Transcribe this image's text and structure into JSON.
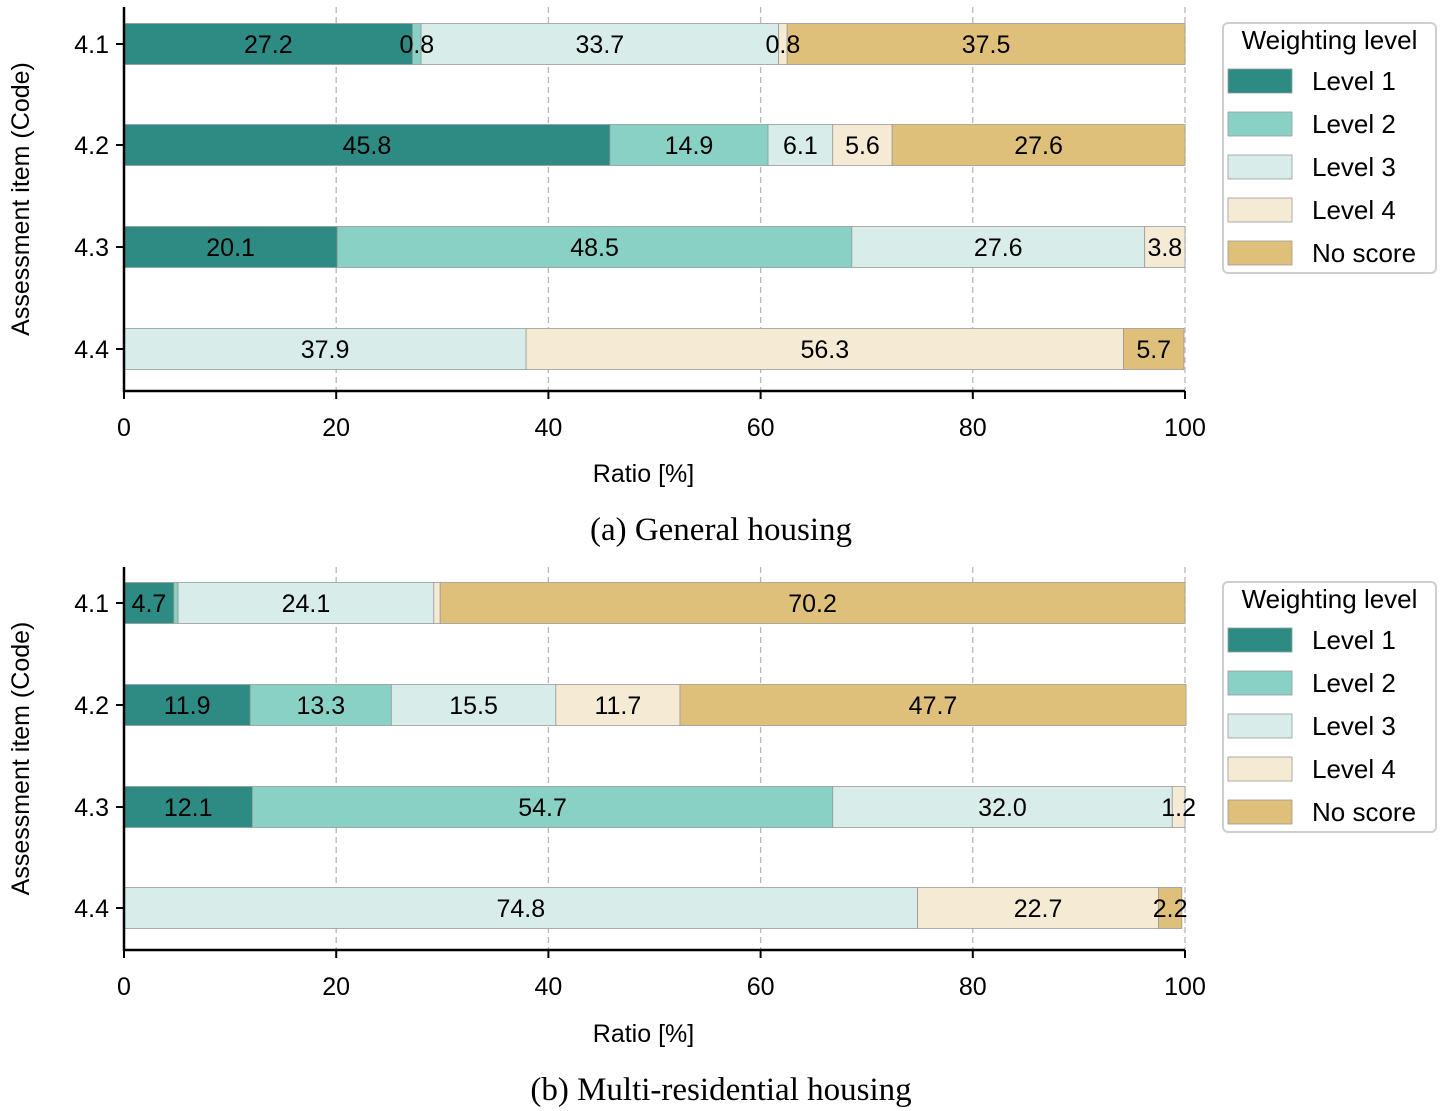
{
  "chart_data": [
    {
      "type": "bar",
      "orientation": "horizontal",
      "stacked": true,
      "caption": "(a) General housing",
      "xlabel": "Ratio [%]",
      "ylabel": "Assessment item (Code)",
      "xlim": [
        0,
        100
      ],
      "xticks": [
        "0",
        "20",
        "40",
        "60",
        "80",
        "100"
      ],
      "grid": "vertical dashed",
      "categories": [
        "4.1",
        "4.2",
        "4.3",
        "4.4"
      ],
      "series": [
        {
          "name": "Level 1",
          "color": "#2e8b84",
          "values": [
            27.2,
            45.8,
            20.1,
            0.0
          ],
          "labels": [
            "27.2",
            "45.8",
            "20.1",
            ""
          ]
        },
        {
          "name": "Level 2",
          "color": "#88d1c4",
          "values": [
            0.8,
            14.9,
            48.5,
            0.0
          ],
          "labels": [
            "0.8",
            "14.9",
            "48.5",
            ""
          ]
        },
        {
          "name": "Level 3",
          "color": "#d8edea",
          "values": [
            33.7,
            6.1,
            27.6,
            37.9
          ],
          "labels": [
            "33.7",
            "6.1",
            "27.6",
            "37.9"
          ]
        },
        {
          "name": "Level 4",
          "color": "#f5ead4",
          "values": [
            0.8,
            5.6,
            3.8,
            56.3
          ],
          "labels": [
            "0.8",
            "5.6",
            "3.8",
            "56.3"
          ]
        },
        {
          "name": "No score",
          "color": "#dfc07a",
          "values": [
            37.5,
            27.6,
            0.0,
            5.7
          ],
          "labels": [
            "37.5",
            "27.6",
            "",
            "5.7"
          ]
        }
      ],
      "legend": {
        "title": "Weighting level",
        "position": "right"
      }
    },
    {
      "type": "bar",
      "orientation": "horizontal",
      "stacked": true,
      "caption": "(b) Multi-residential housing",
      "xlabel": "Ratio [%]",
      "ylabel": "Assessment item (Code)",
      "xlim": [
        0,
        100
      ],
      "xticks": [
        "0",
        "20",
        "40",
        "60",
        "80",
        "100"
      ],
      "grid": "vertical dashed",
      "categories": [
        "4.1",
        "4.2",
        "4.3",
        "4.4"
      ],
      "series": [
        {
          "name": "Level 1",
          "color": "#2e8b84",
          "values": [
            4.7,
            11.9,
            12.1,
            0.0
          ],
          "labels": [
            "4.7",
            "11.9",
            "12.1",
            ""
          ]
        },
        {
          "name": "Level 2",
          "color": "#88d1c4",
          "values": [
            0.4,
            13.3,
            54.7,
            0.0
          ],
          "labels": [
            "",
            "13.3",
            "54.7",
            ""
          ]
        },
        {
          "name": "Level 3",
          "color": "#d8edea",
          "values": [
            24.1,
            15.5,
            32.0,
            74.8
          ],
          "labels": [
            "24.1",
            "15.5",
            "32.0",
            "74.8"
          ]
        },
        {
          "name": "Level 4",
          "color": "#f5ead4",
          "values": [
            0.6,
            11.7,
            1.2,
            22.7
          ],
          "labels": [
            "",
            "11.7",
            "1.2",
            "22.7"
          ]
        },
        {
          "name": "No score",
          "color": "#dfc07a",
          "values": [
            70.2,
            47.7,
            0.0,
            2.2
          ],
          "labels": [
            "70.2",
            "47.7",
            "",
            "2.2"
          ]
        }
      ],
      "legend": {
        "title": "Weighting level",
        "position": "right"
      }
    }
  ]
}
